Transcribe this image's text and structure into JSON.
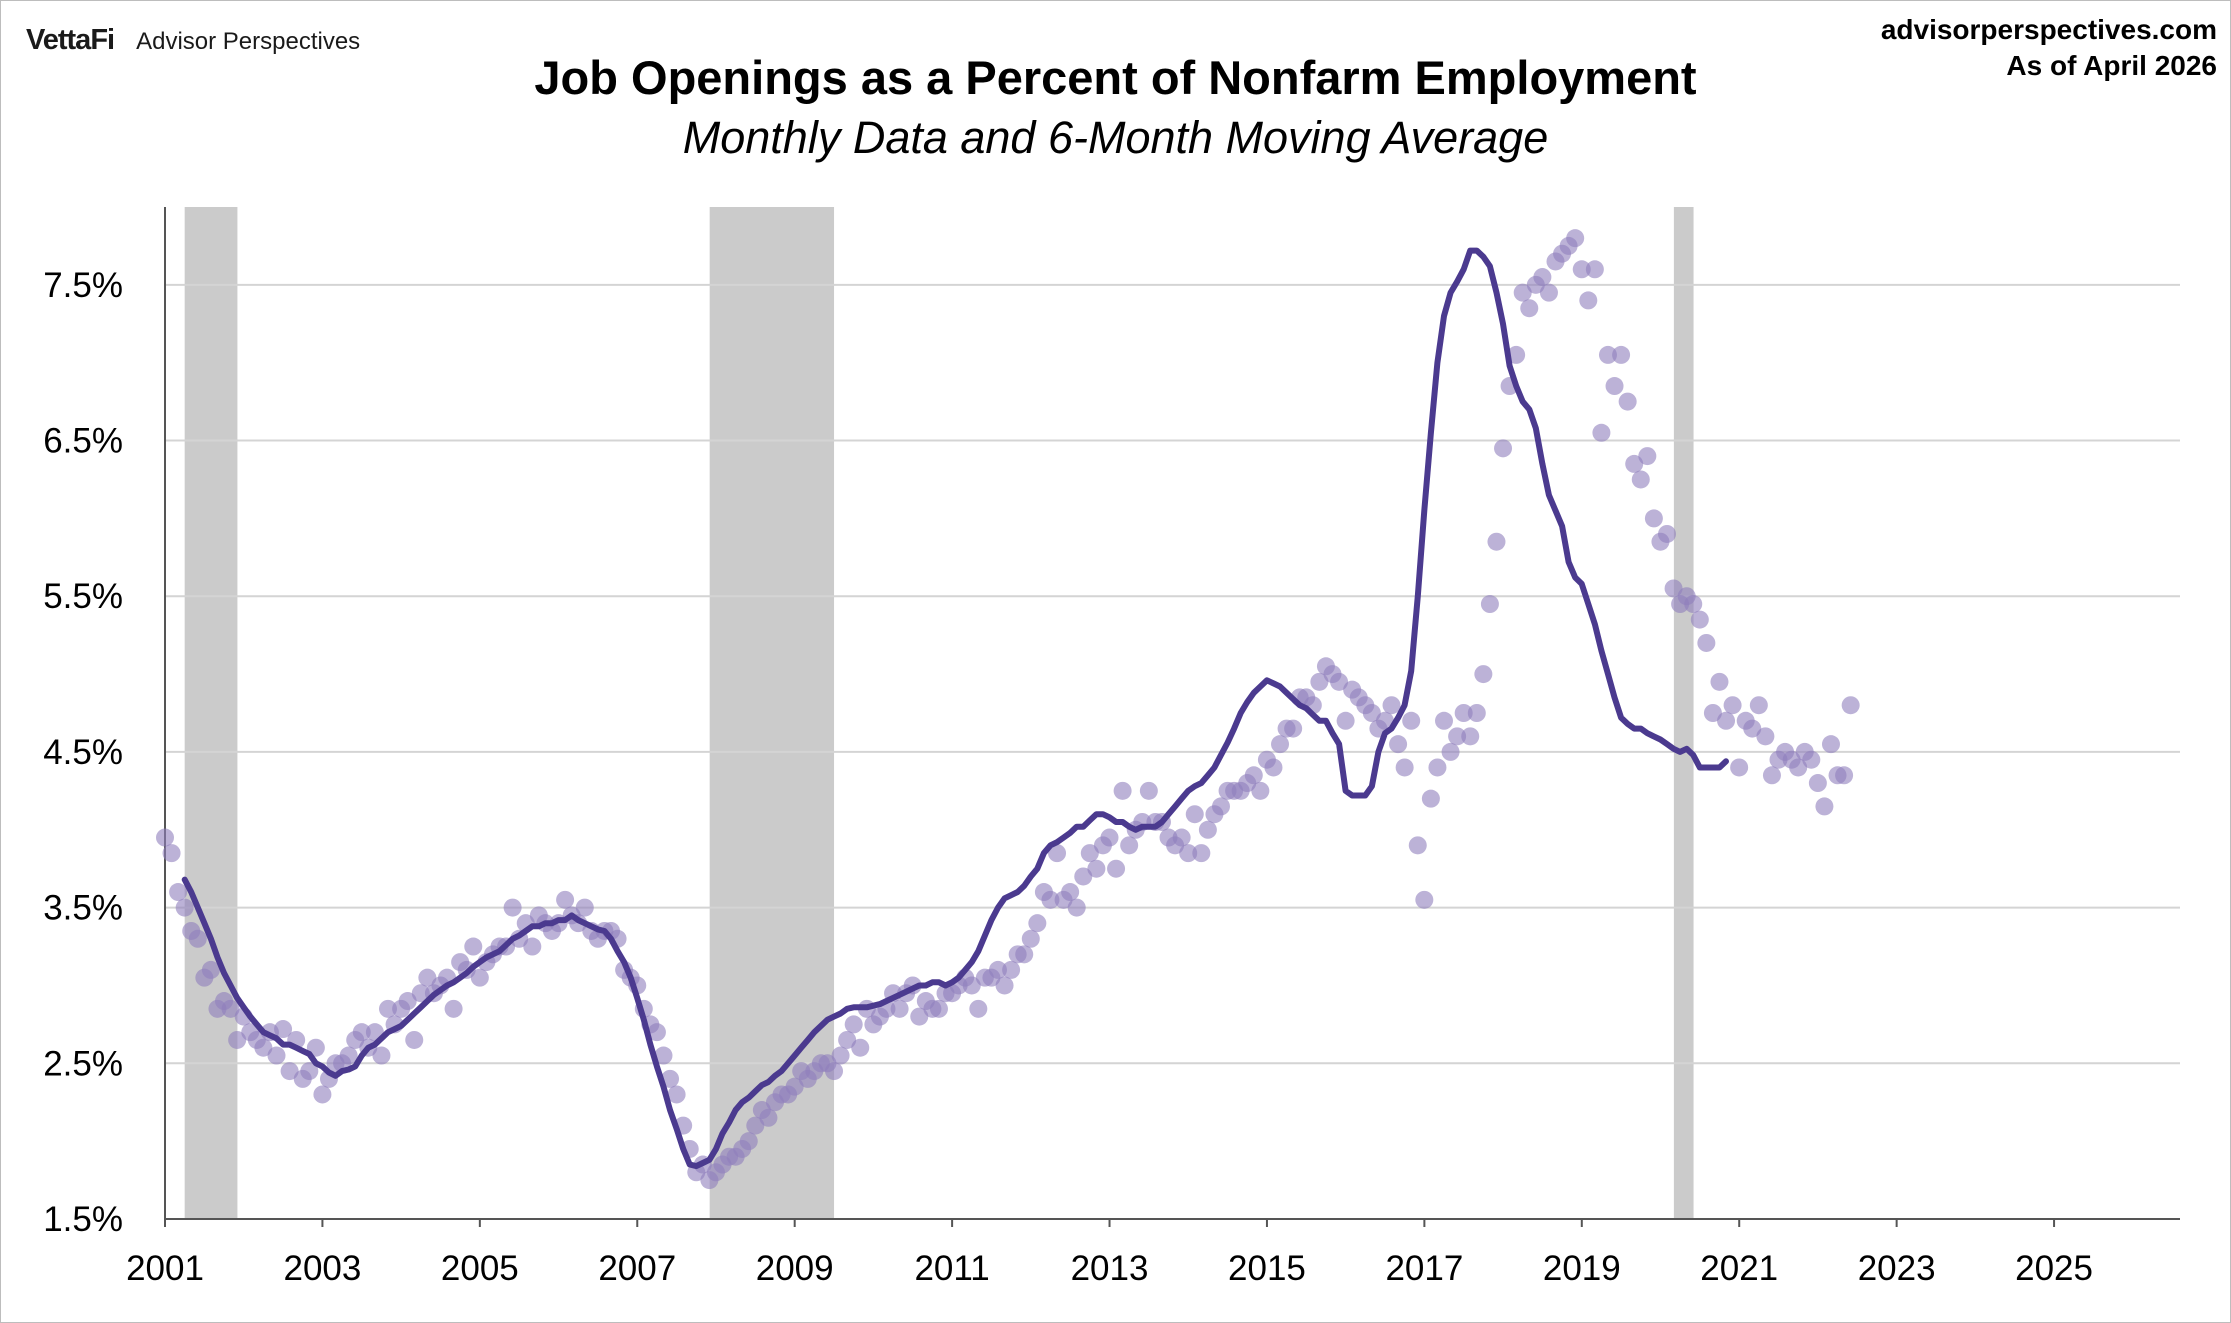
{
  "header": {
    "brand_logo": "VettaFi",
    "brand_name": "Advisor Perspectives",
    "site": "advisorperspectives.com",
    "as_of": "As of April 2026"
  },
  "chart_data": {
    "type": "scatter",
    "title": "Job Openings as a Percent of Nonfarm Employment",
    "subtitle": "Monthly Data and 6-Month Moving Average",
    "xlabel": "",
    "ylabel": "",
    "xlim": [
      2001.0,
      2026.6
    ],
    "ylim": [
      1.5,
      8.0
    ],
    "x_ticks": [
      "2001",
      "2003",
      "2005",
      "2007",
      "2009",
      "2011",
      "2013",
      "2015",
      "2017",
      "2019",
      "2021",
      "2023",
      "2025"
    ],
    "y_ticks": [
      "1.5%",
      "2.5%",
      "3.5%",
      "4.5%",
      "5.5%",
      "6.5%",
      "7.5%"
    ],
    "grid": "horizontal",
    "legend": "none",
    "recessions": [
      [
        2001.25,
        2001.92
      ],
      [
        2007.92,
        2009.5
      ],
      [
        2020.17,
        2020.42
      ]
    ],
    "colors": {
      "points": "#8f7fbd",
      "line": "#4b3a8f",
      "recession": "#cbcbcb"
    },
    "series": [
      {
        "kind": "points",
        "x_start": 2001.0,
        "step": 0.08333,
        "values": [
          3.95,
          3.85,
          3.6,
          3.5,
          3.35,
          3.3,
          3.05,
          3.1,
          2.85,
          2.9,
          2.85,
          2.65,
          2.8,
          2.7,
          2.65,
          2.6,
          2.7,
          2.55,
          2.72,
          2.45,
          2.65,
          2.4,
          2.45,
          2.6,
          2.3,
          2.4,
          2.5,
          2.5,
          2.55,
          2.65,
          2.7,
          2.6,
          2.7,
          2.55,
          2.85,
          2.75,
          2.85,
          2.9,
          2.65,
          2.95,
          3.05,
          2.95,
          3.0,
          3.05,
          2.85,
          3.15,
          3.1,
          3.25,
          3.05,
          3.15,
          3.2,
          3.25,
          3.25,
          3.5,
          3.3,
          3.4,
          3.25,
          3.45,
          3.4,
          3.35,
          3.4,
          3.55,
          3.45,
          3.4,
          3.5,
          3.35,
          3.3,
          3.35,
          3.35,
          3.3,
          3.1,
          3.05,
          3.0,
          2.85,
          2.75,
          2.7,
          2.55,
          2.4,
          2.3,
          2.1,
          1.95,
          1.8,
          1.85,
          1.75,
          1.8,
          1.85,
          1.9,
          1.9,
          1.95,
          2.0,
          2.1,
          2.2,
          2.15,
          2.25,
          2.3,
          2.3,
          2.35,
          2.45,
          2.4,
          2.45,
          2.5,
          2.5,
          2.45,
          2.55,
          2.65,
          2.75,
          2.6,
          2.85,
          2.75,
          2.8,
          2.85,
          2.95,
          2.85,
          2.95,
          3.0,
          2.8,
          2.9,
          2.85,
          2.85,
          2.95,
          2.95,
          3.0,
          3.05,
          3.0,
          2.85,
          3.05,
          3.05,
          3.1,
          3.0,
          3.1,
          3.2,
          3.2,
          3.3,
          3.4,
          3.6,
          3.55,
          3.85,
          3.55,
          3.6,
          3.5,
          3.7,
          3.85,
          3.75,
          3.9,
          3.95,
          3.75,
          4.25,
          3.9,
          4.0,
          4.05,
          4.25,
          4.05,
          4.05,
          3.95,
          3.9,
          3.95,
          3.85,
          4.1,
          3.85,
          4.0,
          4.1,
          4.15,
          4.25,
          4.25,
          4.25,
          4.3,
          4.35,
          4.25,
          4.45,
          4.4,
          4.55,
          4.65,
          4.65,
          4.85,
          4.85,
          4.8,
          4.95,
          5.05,
          5.0,
          4.95,
          4.7,
          4.9,
          4.85,
          4.8,
          4.75,
          4.65,
          4.7,
          4.8,
          4.55,
          4.4,
          4.7,
          3.9,
          3.55,
          4.2,
          4.4,
          4.7,
          4.5,
          4.6,
          4.75,
          4.6,
          4.75,
          5.0,
          5.45,
          5.85,
          6.45,
          6.85,
          7.05,
          7.45,
          7.35,
          7.5,
          7.55,
          7.45,
          7.65,
          7.7,
          7.75,
          7.8,
          7.6,
          7.4,
          7.6,
          6.55,
          7.05,
          6.85,
          7.05,
          6.75,
          6.35,
          6.25,
          6.4,
          6.0,
          5.85,
          5.9,
          5.55,
          5.45,
          5.5,
          5.45,
          5.35,
          5.2,
          4.75,
          4.95,
          4.7,
          4.8,
          4.4,
          4.7,
          4.65,
          4.8,
          4.6,
          4.35,
          4.45,
          4.5,
          4.45,
          4.4,
          4.5,
          4.45,
          4.3,
          4.15,
          4.55,
          4.35,
          4.35,
          4.8
        ]
      },
      {
        "kind": "line",
        "name": "6-Month Moving Average",
        "x_start": 2001.25,
        "step": 0.08333,
        "values": [
          3.68,
          3.6,
          3.5,
          3.4,
          3.3,
          3.18,
          3.08,
          3.0,
          2.92,
          2.86,
          2.8,
          2.75,
          2.7,
          2.68,
          2.66,
          2.62,
          2.62,
          2.6,
          2.58,
          2.56,
          2.5,
          2.48,
          2.44,
          2.42,
          2.45,
          2.46,
          2.48,
          2.55,
          2.6,
          2.62,
          2.66,
          2.7,
          2.72,
          2.74,
          2.78,
          2.82,
          2.86,
          2.9,
          2.94,
          2.97,
          3.0,
          3.02,
          3.05,
          3.08,
          3.12,
          3.15,
          3.18,
          3.2,
          3.22,
          3.26,
          3.3,
          3.32,
          3.35,
          3.38,
          3.38,
          3.4,
          3.4,
          3.42,
          3.42,
          3.45,
          3.42,
          3.4,
          3.38,
          3.36,
          3.35,
          3.3,
          3.22,
          3.15,
          3.05,
          2.92,
          2.78,
          2.62,
          2.48,
          2.35,
          2.2,
          2.08,
          1.95,
          1.85,
          1.84,
          1.86,
          1.88,
          1.95,
          2.05,
          2.12,
          2.2,
          2.25,
          2.28,
          2.32,
          2.36,
          2.38,
          2.42,
          2.45,
          2.5,
          2.55,
          2.6,
          2.65,
          2.7,
          2.74,
          2.78,
          2.8,
          2.82,
          2.85,
          2.86,
          2.86,
          2.86,
          2.87,
          2.88,
          2.9,
          2.92,
          2.94,
          2.96,
          2.98,
          3.0,
          3.0,
          3.02,
          3.02,
          3.0,
          3.02,
          3.05,
          3.1,
          3.15,
          3.22,
          3.32,
          3.42,
          3.5,
          3.56,
          3.58,
          3.6,
          3.64,
          3.7,
          3.75,
          3.85,
          3.9,
          3.92,
          3.95,
          3.98,
          4.02,
          4.02,
          4.06,
          4.1,
          4.1,
          4.08,
          4.05,
          4.05,
          4.02,
          4.0,
          4.02,
          4.02,
          4.02,
          4.05,
          4.1,
          4.15,
          4.2,
          4.25,
          4.28,
          4.3,
          4.35,
          4.4,
          4.48,
          4.56,
          4.65,
          4.75,
          4.82,
          4.88,
          4.92,
          4.96,
          4.94,
          4.92,
          4.88,
          4.84,
          4.8,
          4.78,
          4.74,
          4.7,
          4.7,
          4.62,
          4.55,
          4.25,
          4.22,
          4.22,
          4.22,
          4.28,
          4.5,
          4.62,
          4.65,
          4.72,
          4.8,
          5.02,
          5.5,
          6.05,
          6.55,
          7.0,
          7.3,
          7.45,
          7.52,
          7.6,
          7.72,
          7.72,
          7.68,
          7.62,
          7.45,
          7.25,
          6.98,
          6.85,
          6.75,
          6.7,
          6.58,
          6.35,
          6.15,
          6.05,
          5.95,
          5.72,
          5.62,
          5.58,
          5.45,
          5.32,
          5.15,
          5.0,
          4.85,
          4.72,
          4.68,
          4.65,
          4.65,
          4.62,
          4.6,
          4.58,
          4.55,
          4.52,
          4.5,
          4.52,
          4.48,
          4.4,
          4.4,
          4.4,
          4.4,
          4.44
        ]
      }
    ]
  }
}
